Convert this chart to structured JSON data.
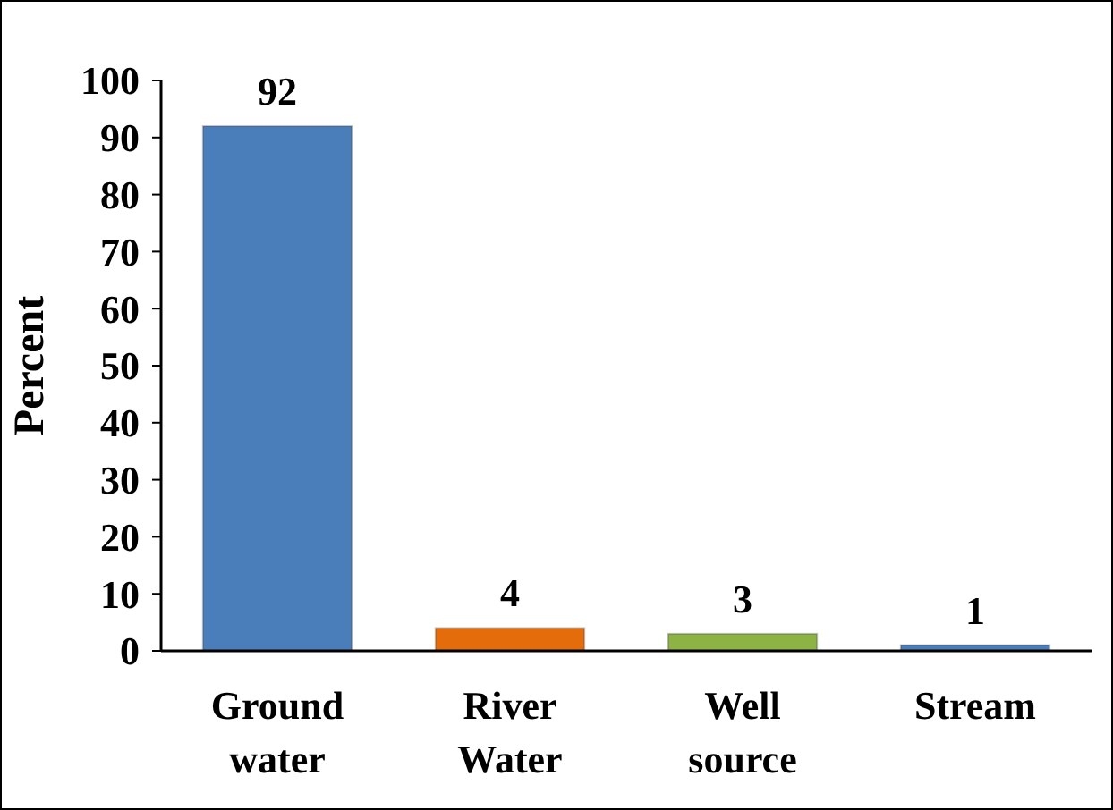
{
  "chart_data": {
    "type": "bar",
    "ylabel": "Percent",
    "categories": [
      "Ground water",
      "River Water",
      "Well source",
      "Stream"
    ],
    "values": [
      92,
      4,
      3,
      1
    ],
    "colors": [
      "#4a7ebb",
      "#e46c0a",
      "#8db344",
      "#4a7ebb"
    ],
    "ylim": [
      0,
      100
    ],
    "yticks": [
      0,
      10,
      20,
      30,
      40,
      50,
      60,
      70,
      80,
      90,
      100
    ],
    "data_labels": true,
    "grid": false
  }
}
